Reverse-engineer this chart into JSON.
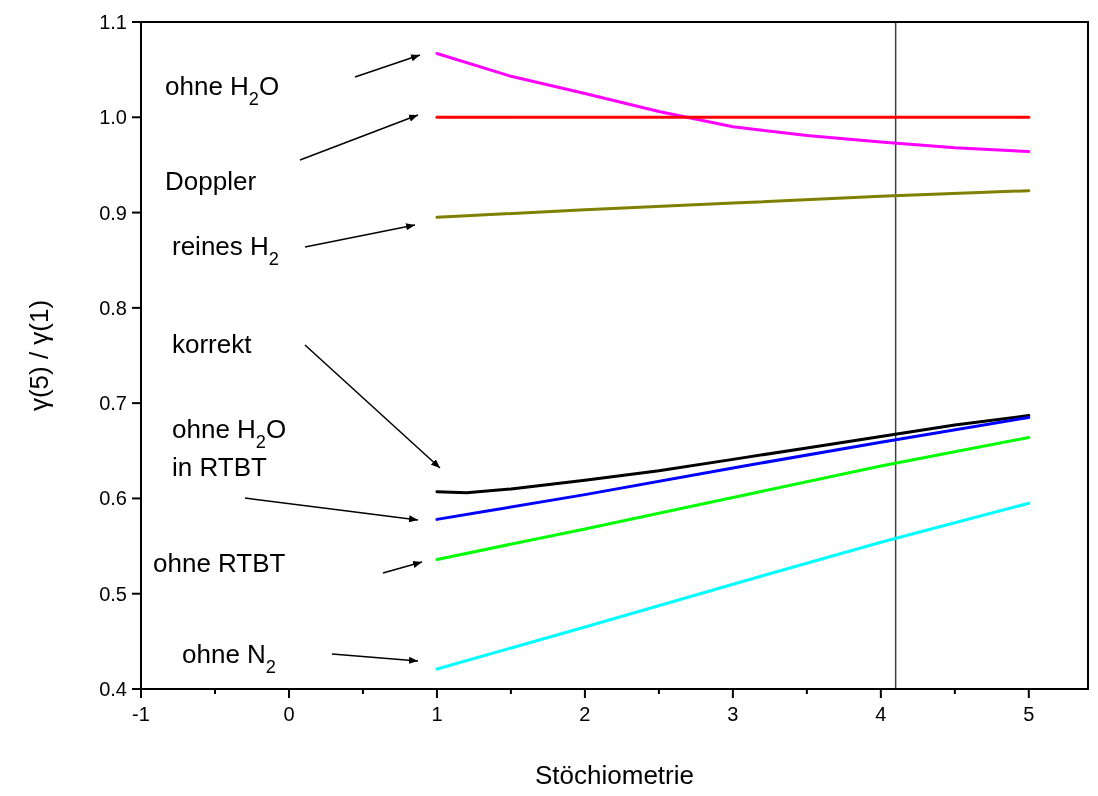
{
  "chart_data": {
    "type": "line",
    "xlabel": "Stöchiometrie",
    "ylabel": "γ(5) / γ(1)",
    "xlim": [
      -1,
      5.4
    ],
    "ylim": [
      0.4,
      1.1
    ],
    "xticks": [
      -1,
      {
        "value": -0.5,
        "label": null
      },
      0,
      {
        "value": 0.5,
        "label": null
      },
      1,
      {
        "value": 1.5,
        "label": null
      },
      2,
      {
        "value": 2.5,
        "label": null
      },
      3,
      {
        "value": 3.5,
        "label": null
      },
      4,
      {
        "value": 4.5,
        "label": null
      },
      5
    ],
    "yticks": [
      0.4,
      0.5,
      0.6,
      0.7,
      0.8,
      0.9,
      {
        "value": 1.0,
        "label": "1.0"
      },
      1.1
    ],
    "grid": false,
    "line_style": "solid",
    "marker": "none",
    "series": [
      {
        "color": "#ff00ff",
        "x": [
          1,
          1.5,
          2,
          2.5,
          3,
          3.5,
          4,
          4.5,
          5
        ],
        "values": [
          1.067,
          1.043,
          1.025,
          1.006,
          0.99,
          0.981,
          0.974,
          0.968,
          0.964
        ]
      },
      {
        "color": "#ff0000",
        "x": [
          1,
          5
        ],
        "values": [
          1.0,
          1.0
        ]
      },
      {
        "color": "#808000",
        "x": [
          1,
          2,
          3,
          4,
          5
        ],
        "values": [
          0.895,
          0.903,
          0.91,
          0.917,
          0.923
        ]
      },
      {
        "color": "#000000",
        "x": [
          1,
          1.2,
          1.5,
          2,
          2.5,
          3,
          3.5,
          4,
          4.5,
          5
        ],
        "values": [
          0.607,
          0.606,
          0.61,
          0.619,
          0.629,
          0.641,
          0.653,
          0.665,
          0.677,
          0.687
        ]
      },
      {
        "color": "#0000ff",
        "x": [
          1,
          2,
          3,
          4,
          5
        ],
        "values": [
          0.578,
          0.604,
          0.632,
          0.659,
          0.685
        ]
      },
      {
        "color": "#00ff00",
        "x": [
          1,
          2,
          3,
          4,
          5
        ],
        "values": [
          0.536,
          0.568,
          0.601,
          0.634,
          0.664
        ]
      },
      {
        "color": "#00ffff",
        "x": [
          1,
          2,
          3,
          4,
          5
        ],
        "values": [
          0.421,
          0.465,
          0.51,
          0.554,
          0.595
        ]
      }
    ],
    "ref_lines": [
      {
        "axis": "x",
        "value": 4.1,
        "color": "#404040"
      }
    ],
    "annotations": [
      "ohne H$_{2}$O",
      "Doppler",
      "reines H$_{2}$",
      "korrekt",
      "ohne H$_{2}$O\nin RTBT",
      "ohne RTBT",
      "ohne N$_{2}$"
    ]
  }
}
